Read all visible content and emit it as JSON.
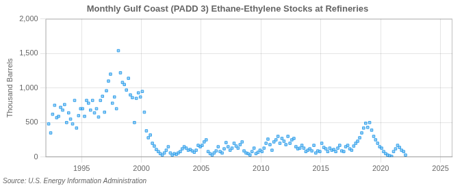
{
  "chart_data": {
    "type": "scatter",
    "title": "Monthly Gulf Coast (PADD 3) Ethane-Ethylene Stocks at Refineries",
    "ylabel": "Thousand Barrels",
    "annotations": [
      "Source: U.S. Energy Information Administration"
    ],
    "marker": "square",
    "grid": true,
    "xlim": [
      1992.0,
      2026.0
    ],
    "ylim": [
      0,
      2000
    ],
    "xticks": [
      1995,
      2000,
      2005,
      2010,
      2015,
      2020,
      2025
    ],
    "yticks": [
      0,
      500,
      {
        "value": 1000,
        "label": "1,000"
      },
      {
        "value": 1500,
        "label": "1,500"
      },
      {
        "value": 2000,
        "label": "2,000"
      }
    ],
    "x": [
      1992.25,
      1992.42,
      1992.58,
      1992.75,
      1992.92,
      1993.08,
      1993.25,
      1993.42,
      1993.58,
      1993.75,
      1993.92,
      1994.08,
      1994.25,
      1994.42,
      1994.58,
      1994.75,
      1994.92,
      1995.08,
      1995.25,
      1995.42,
      1995.58,
      1995.75,
      1995.92,
      1996.08,
      1996.25,
      1996.42,
      1996.58,
      1996.75,
      1996.92,
      1997.08,
      1997.25,
      1997.42,
      1997.58,
      1997.75,
      1997.92,
      1998.08,
      1998.25,
      1998.42,
      1998.58,
      1998.75,
      1998.92,
      1999.08,
      1999.25,
      1999.42,
      1999.58,
      1999.75,
      1999.92,
      2000.08,
      2000.25,
      2000.42,
      2000.58,
      2000.75,
      2000.92,
      2001.08,
      2001.25,
      2001.42,
      2001.58,
      2001.75,
      2001.92,
      2002.08,
      2002.25,
      2002.42,
      2002.58,
      2002.75,
      2002.92,
      2003.08,
      2003.25,
      2003.42,
      2003.58,
      2003.75,
      2003.92,
      2004.08,
      2004.25,
      2004.42,
      2004.58,
      2004.75,
      2004.92,
      2005.08,
      2005.25,
      2005.42,
      2005.58,
      2005.75,
      2005.92,
      2006.08,
      2006.25,
      2006.42,
      2006.58,
      2006.75,
      2006.92,
      2007.08,
      2007.25,
      2007.42,
      2007.58,
      2007.75,
      2007.92,
      2008.08,
      2008.25,
      2008.42,
      2008.58,
      2008.75,
      2008.92,
      2009.08,
      2009.25,
      2009.42,
      2009.58,
      2009.75,
      2009.92,
      2010.08,
      2010.25,
      2010.42,
      2010.58,
      2010.75,
      2010.92,
      2011.08,
      2011.25,
      2011.42,
      2011.58,
      2011.75,
      2011.92,
      2012.08,
      2012.25,
      2012.42,
      2012.58,
      2012.75,
      2012.92,
      2013.08,
      2013.25,
      2013.42,
      2013.58,
      2013.75,
      2013.92,
      2014.08,
      2014.25,
      2014.42,
      2014.58,
      2014.75,
      2014.92,
      2015.08,
      2015.25,
      2015.42,
      2015.58,
      2015.75,
      2015.92,
      2016.08,
      2016.25,
      2016.42,
      2016.58,
      2016.75,
      2016.92,
      2017.08,
      2017.25,
      2017.42,
      2017.58,
      2017.75,
      2017.92,
      2018.08,
      2018.25,
      2018.42,
      2018.58,
      2018.75,
      2018.92,
      2019.08,
      2019.25,
      2019.42,
      2019.58,
      2019.75,
      2019.92,
      2020.08,
      2020.25,
      2020.42,
      2020.58,
      2020.75,
      2020.92,
      2021.08,
      2021.25,
      2021.42,
      2021.58,
      2021.75,
      2021.92,
      2022.08
    ],
    "values": [
      480,
      350,
      620,
      750,
      570,
      590,
      720,
      680,
      760,
      500,
      640,
      550,
      480,
      820,
      420,
      600,
      700,
      700,
      590,
      820,
      780,
      680,
      820,
      640,
      700,
      580,
      820,
      880,
      650,
      960,
      1100,
      1200,
      780,
      870,
      700,
      1540,
      1220,
      1080,
      1050,
      970,
      1140,
      900,
      860,
      500,
      850,
      930,
      870,
      950,
      650,
      380,
      280,
      320,
      200,
      160,
      110,
      80,
      50,
      30,
      60,
      100,
      150,
      60,
      30,
      50,
      40,
      60,
      80,
      120,
      150,
      130,
      100,
      110,
      90,
      70,
      100,
      170,
      150,
      170,
      220,
      250,
      80,
      50,
      30,
      60,
      90,
      150,
      80,
      60,
      120,
      210,
      150,
      100,
      130,
      200,
      160,
      130,
      180,
      220,
      90,
      60,
      50,
      30,
      80,
      130,
      50,
      70,
      100,
      80,
      130,
      200,
      260,
      180,
      100,
      220,
      250,
      300,
      200,
      270,
      230,
      180,
      300,
      200,
      250,
      270,
      150,
      120,
      130,
      170,
      130,
      80,
      100,
      120,
      90,
      170,
      60,
      90,
      80,
      200,
      140,
      120,
      80,
      130,
      100,
      110,
      80,
      130,
      170,
      90,
      80,
      150,
      170,
      120,
      100,
      160,
      200,
      230,
      280,
      350,
      420,
      490,
      430,
      500,
      390,
      300,
      250,
      200,
      150,
      130,
      80,
      50,
      30,
      20,
      10,
      80,
      120,
      170,
      140,
      100,
      80,
      30
    ]
  }
}
